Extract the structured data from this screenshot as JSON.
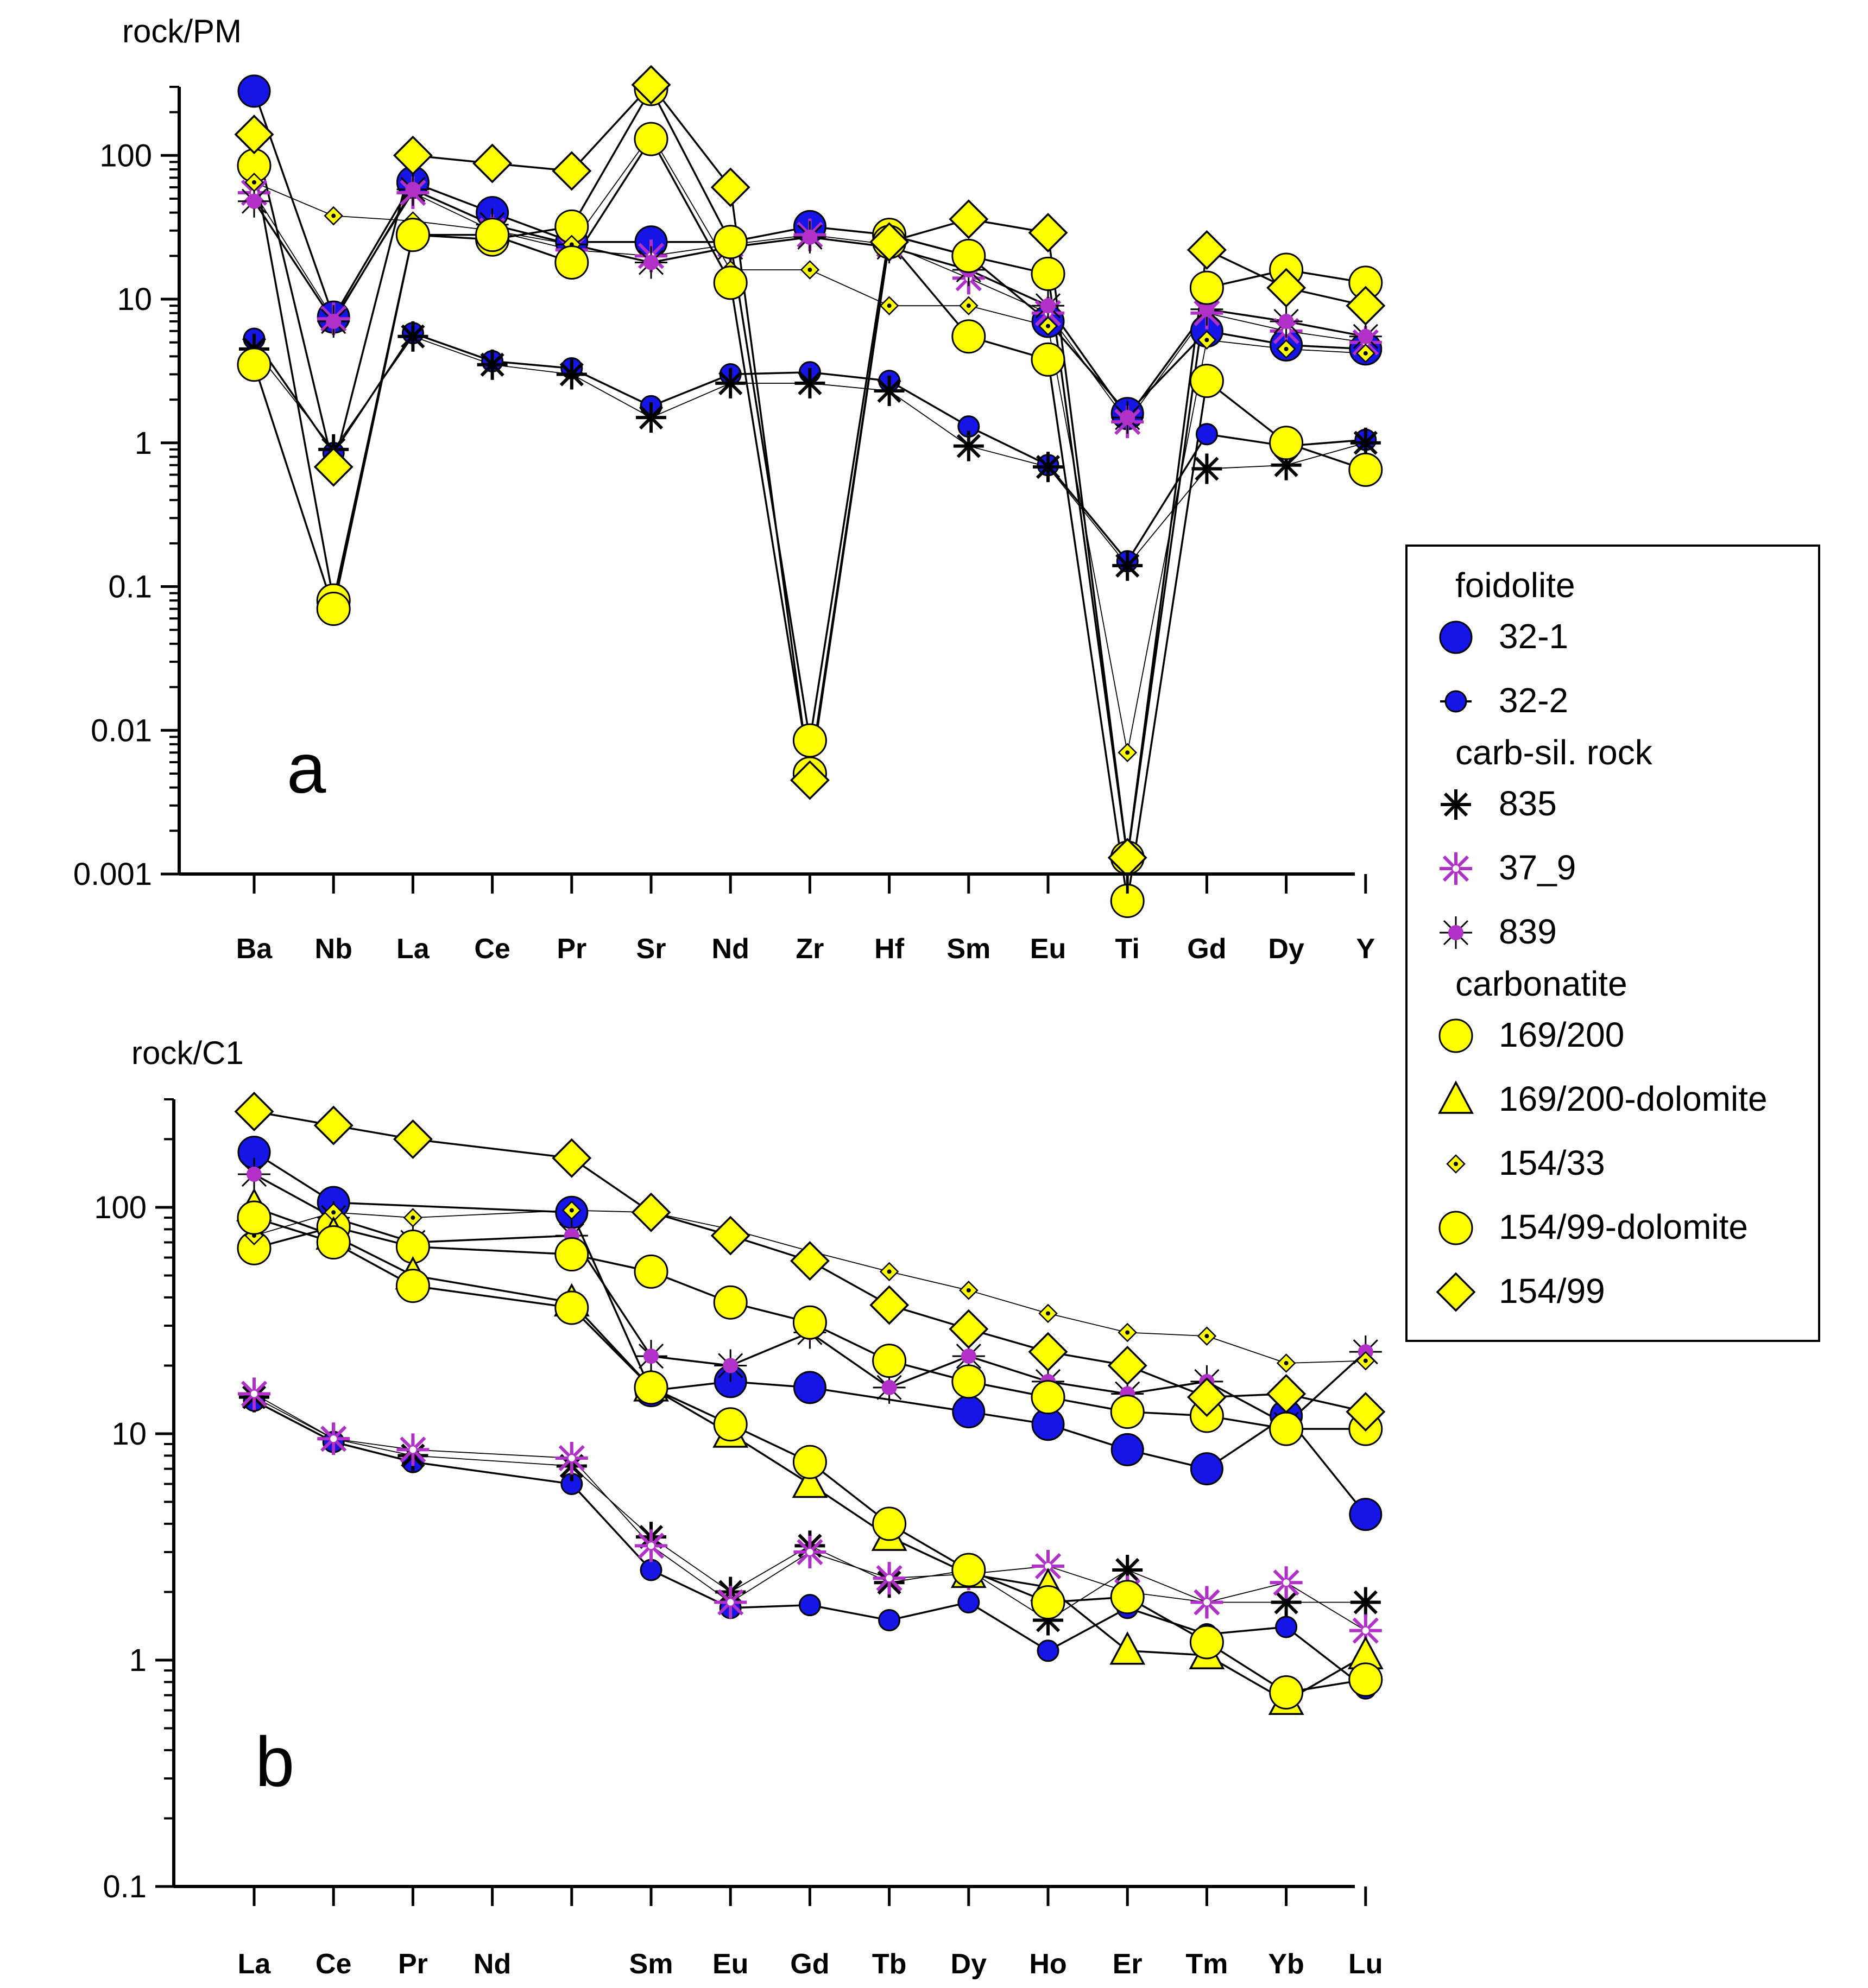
{
  "colors": {
    "blue": "#1515e6",
    "yellow": "#ffff00",
    "magenta": "#b030c8",
    "black": "#000000"
  },
  "legend": {
    "groups": [
      {
        "label": "foidolite",
        "items": [
          {
            "id": "32-1",
            "label": "32-1"
          },
          {
            "id": "32-2",
            "label": "32-2"
          }
        ]
      },
      {
        "label": "carb-sil. rock",
        "items": [
          {
            "id": "835",
            "label": "835"
          },
          {
            "id": "37_9",
            "label": "37_9"
          },
          {
            "id": "839",
            "label": "839"
          }
        ]
      },
      {
        "label": "carbonatite",
        "items": [
          {
            "id": "169/200",
            "label": "169/200"
          },
          {
            "id": "169/200-dolomite",
            "label": "169/200-dolomite"
          },
          {
            "id": "154/33",
            "label": "154/33"
          },
          {
            "id": "154/99-dolomite",
            "label": "154/99-dolomite"
          },
          {
            "id": "154/99",
            "label": "154/99"
          }
        ]
      }
    ]
  },
  "chart_data": [
    {
      "type": "line",
      "panel_label": "a",
      "ylabel": "rock/PM",
      "yscale": "log",
      "ylim": [
        0.001,
        300
      ],
      "yticks": [
        0.001,
        0.01,
        0.1,
        1,
        10,
        100
      ],
      "ytick_labels": [
        "0.001",
        "0.01",
        "0.1",
        "1",
        "10",
        "100"
      ],
      "categories": [
        "Ba",
        "Nb",
        "La",
        "Ce",
        "Pr",
        "Sr",
        "Nd",
        "Zr",
        "Hf",
        "Sm",
        "Eu",
        "Ti",
        "Gd",
        "Dy",
        "Y"
      ],
      "series": [
        {
          "name": "32-1",
          "values": [
            280,
            7.5,
            65,
            40,
            25,
            25,
            25,
            32,
            28,
            20,
            7,
            1.6,
            6,
            4.8,
            4.5
          ]
        },
        {
          "name": "32-2",
          "values": [
            5.3,
            0.85,
            5.8,
            3.7,
            3.3,
            1.8,
            3.0,
            3.1,
            2.7,
            1.3,
            0.7,
            0.15,
            1.15,
            0.95,
            1.05
          ]
        },
        {
          "name": "835",
          "values": [
            4.5,
            0.9,
            5.5,
            3.5,
            3.0,
            1.5,
            2.6,
            2.6,
            2.3,
            0.95,
            0.68,
            0.14,
            0.66,
            0.7,
            1.0
          ]
        },
        {
          "name": "37_9",
          "values": [
            55,
            7.3,
            55,
            30,
            22,
            20,
            24,
            28,
            24,
            14,
            8,
            1.4,
            8,
            6,
            5
          ]
        },
        {
          "name": "839",
          "values": [
            48,
            7,
            58,
            33,
            24,
            18,
            23,
            27,
            23,
            16,
            9,
            1.5,
            8.5,
            7,
            5.5
          ]
        },
        {
          "name": "169/200",
          "values": [
            85,
            0.08,
            28,
            26,
            32,
            290,
            25,
            0.0085,
            28,
            20,
            15,
            0.0013,
            12,
            16,
            13
          ]
        },
        {
          "name": "154/33",
          "values": [
            65,
            38,
            35,
            30,
            24,
            140,
            16,
            16,
            9,
            9,
            6.5,
            0.007,
            5.2,
            4.5,
            4.2
          ]
        },
        {
          "name": "154/99-dolomite",
          "values": [
            3.5,
            0.07,
            28,
            28,
            18,
            130,
            13,
            0.005,
            25,
            5.5,
            3.8,
            0.00065,
            2.7,
            1.0,
            0.65
          ]
        },
        {
          "name": "154/99",
          "values": [
            140,
            0.68,
            100,
            88,
            78,
            310,
            60,
            0.0045,
            25,
            36,
            29,
            0.0013,
            22,
            12,
            9
          ]
        }
      ]
    },
    {
      "type": "line",
      "panel_label": "b",
      "ylabel": "rock/C1",
      "yscale": "log",
      "ylim": [
        0.1,
        300
      ],
      "yticks": [
        0.1,
        1,
        10,
        100
      ],
      "ytick_labels": [
        "0.1",
        "1",
        "10",
        "100"
      ],
      "categories": [
        "La",
        "Ce",
        "Pr",
        "Nd",
        "",
        "Sm",
        "Eu",
        "Gd",
        "Tb",
        "Dy",
        "Ho",
        "Er",
        "Tm",
        "Yb",
        "Lu"
      ],
      "series": [
        {
          "name": "32-1",
          "values": [
            175,
            105,
            null,
            null,
            95,
            15.5,
            17,
            16,
            null,
            12.5,
            11,
            8.5,
            7,
            12,
            4.4
          ]
        },
        {
          "name": "32-2",
          "values": [
            14,
            9.2,
            7.5,
            null,
            6,
            2.5,
            1.7,
            1.75,
            1.5,
            1.8,
            1.1,
            1.7,
            1.3,
            1.4,
            0.75
          ]
        },
        {
          "name": "835",
          "values": [
            14.5,
            9.5,
            8,
            null,
            7.2,
            3.5,
            2.0,
            3.2,
            2.2,
            2.5,
            1.5,
            2.5,
            1.8,
            1.8,
            1.8
          ]
        },
        {
          "name": "37_9",
          "values": [
            15,
            9.5,
            8.5,
            null,
            7.8,
            3.2,
            1.8,
            3.0,
            2.3,
            2.4,
            2.6,
            2.0,
            1.8,
            2.2,
            1.35
          ]
        },
        {
          "name": "839",
          "values": [
            140,
            90,
            70,
            null,
            75,
            22,
            20,
            28,
            16,
            22,
            17,
            15,
            17,
            11,
            23
          ]
        },
        {
          "name": "169/200",
          "values": [
            66,
            82,
            67,
            null,
            62,
            52,
            38,
            31,
            21,
            17,
            14.5,
            12.5,
            12,
            10.5,
            10.5
          ]
        },
        {
          "name": "154/33",
          "values": [
            75,
            95,
            90,
            null,
            97,
            95,
            80,
            64,
            52,
            43,
            34,
            28,
            27,
            20.5,
            21
          ]
        },
        {
          "name": "169/200-dolomite",
          "values": [
            100,
            75,
            50,
            null,
            38,
            16,
            10,
            6,
            3.5,
            2.4,
            2.1,
            1.1,
            1.05,
            0.66,
            1.05
          ]
        },
        {
          "name": "154/99-dolomite",
          "values": [
            90,
            70,
            45,
            null,
            36,
            16,
            11,
            7.5,
            4,
            2.5,
            1.8,
            1.9,
            1.2,
            0.72,
            0.82
          ]
        },
        {
          "name": "154/99",
          "values": [
            265,
            230,
            200,
            null,
            165,
            95,
            75,
            58,
            37,
            29,
            23,
            20,
            14.5,
            15,
            12.5
          ]
        }
      ]
    }
  ]
}
